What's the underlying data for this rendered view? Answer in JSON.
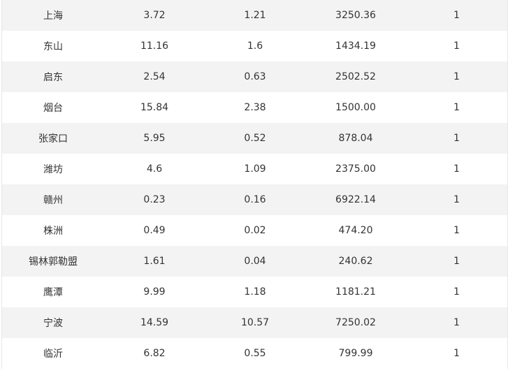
{
  "table": {
    "rows": [
      [
        "上海",
        "3.72",
        "1.21",
        "3250.36",
        "1"
      ],
      [
        "东山",
        "11.16",
        "1.6",
        "1434.19",
        "1"
      ],
      [
        "启东",
        "2.54",
        "0.63",
        "2502.52",
        "1"
      ],
      [
        "烟台",
        "15.84",
        "2.38",
        "1500.00",
        "1"
      ],
      [
        "张家口",
        "5.95",
        "0.52",
        "878.04",
        "1"
      ],
      [
        "潍坊",
        "4.6",
        "1.09",
        "2375.00",
        "1"
      ],
      [
        "赣州",
        "0.23",
        "0.16",
        "6922.14",
        "1"
      ],
      [
        "株洲",
        "0.49",
        "0.02",
        "474.20",
        "1"
      ],
      [
        "锡林郭勒盟",
        "1.61",
        "0.04",
        "240.62",
        "1"
      ],
      [
        "鹰潭",
        "9.99",
        "1.18",
        "1181.21",
        "1"
      ],
      [
        "宁波",
        "14.59",
        "10.57",
        "7250.02",
        "1"
      ],
      [
        "临沂",
        "6.82",
        "0.55",
        "799.99",
        "1"
      ]
    ]
  },
  "colors": {
    "row_alt_bg": "#f3f3f3",
    "row_bg": "#ffffff",
    "text": "#333333"
  }
}
